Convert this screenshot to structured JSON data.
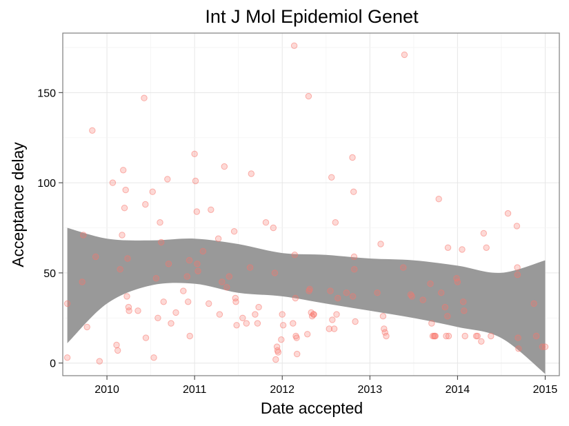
{
  "chart_data": {
    "type": "scatter",
    "title": "Int J Mol Epidemiol Genet",
    "xlabel": "Date accepted",
    "ylabel": "Acceptance delay",
    "x_ticks": [
      "2010",
      "2011",
      "2012",
      "2013",
      "2014",
      "2015"
    ],
    "y_ticks": [
      "0",
      "50",
      "100",
      "150"
    ],
    "xlim": [
      "2009-07-01",
      "2015-03-01"
    ],
    "ylim": [
      -7,
      183
    ],
    "grid": true,
    "point_color": "#f8766d",
    "band_color": "#999999",
    "points": [
      [
        "2009-07-20",
        33
      ],
      [
        "2009-07-20",
        3
      ],
      [
        "2009-09-20",
        45
      ],
      [
        "2009-09-25",
        71
      ],
      [
        "2009-10-10",
        20
      ],
      [
        "2009-11-01",
        129
      ],
      [
        "2009-11-15",
        59
      ],
      [
        "2009-12-01",
        1
      ],
      [
        "2010-01-25",
        100
      ],
      [
        "2010-02-10",
        10
      ],
      [
        "2010-02-15",
        7
      ],
      [
        "2010-02-25",
        52
      ],
      [
        "2010-03-05",
        71
      ],
      [
        "2010-03-10",
        107
      ],
      [
        "2010-03-15",
        86
      ],
      [
        "2010-03-20",
        96
      ],
      [
        "2010-03-25",
        37
      ],
      [
        "2010-03-28",
        58
      ],
      [
        "2010-04-01",
        31
      ],
      [
        "2010-04-03",
        29
      ],
      [
        "2010-05-10",
        29
      ],
      [
        "2010-06-05",
        147
      ],
      [
        "2010-06-10",
        88
      ],
      [
        "2010-06-12",
        14
      ],
      [
        "2010-07-10",
        95
      ],
      [
        "2010-07-15",
        3
      ],
      [
        "2010-07-25",
        47
      ],
      [
        "2010-08-01",
        25
      ],
      [
        "2010-08-10",
        78
      ],
      [
        "2010-08-15",
        67
      ],
      [
        "2010-08-25",
        34
      ],
      [
        "2010-09-10",
        102
      ],
      [
        "2010-09-15",
        55
      ],
      [
        "2010-09-25",
        22
      ],
      [
        "2010-10-15",
        28
      ],
      [
        "2010-11-15",
        40
      ],
      [
        "2010-12-01",
        48
      ],
      [
        "2010-12-05",
        34
      ],
      [
        "2010-12-10",
        57
      ],
      [
        "2010-12-12",
        15
      ],
      [
        "2011-01-01",
        116
      ],
      [
        "2011-01-05",
        101
      ],
      [
        "2011-01-10",
        84
      ],
      [
        "2011-01-12",
        55
      ],
      [
        "2011-01-15",
        51
      ],
      [
        "2011-02-05",
        62
      ],
      [
        "2011-03-01",
        33
      ],
      [
        "2011-03-10",
        85
      ],
      [
        "2011-04-10",
        69
      ],
      [
        "2011-04-15",
        27
      ],
      [
        "2011-04-25",
        45
      ],
      [
        "2011-05-05",
        109
      ],
      [
        "2011-05-15",
        42
      ],
      [
        "2011-05-25",
        48
      ],
      [
        "2011-06-15",
        73
      ],
      [
        "2011-06-20",
        36
      ],
      [
        "2011-06-22",
        34
      ],
      [
        "2011-06-25",
        21
      ],
      [
        "2011-07-20",
        25
      ],
      [
        "2011-08-05",
        22
      ],
      [
        "2011-08-20",
        53
      ],
      [
        "2011-08-25",
        105
      ],
      [
        "2011-09-10",
        27
      ],
      [
        "2011-09-20",
        22
      ],
      [
        "2011-09-25",
        31
      ],
      [
        "2011-10-25",
        78
      ],
      [
        "2011-11-25",
        75
      ],
      [
        "2011-12-01",
        50
      ],
      [
        "2011-12-05",
        2
      ],
      [
        "2011-12-10",
        9
      ],
      [
        "2011-12-12",
        7
      ],
      [
        "2011-12-15",
        6
      ],
      [
        "2011-12-28",
        13
      ],
      [
        "2012-01-01",
        27
      ],
      [
        "2012-01-05",
        21
      ],
      [
        "2012-02-15",
        22
      ],
      [
        "2012-02-20",
        176
      ],
      [
        "2012-02-22",
        60
      ],
      [
        "2012-02-25",
        36
      ],
      [
        "2012-02-27",
        15
      ],
      [
        "2012-03-01",
        14
      ],
      [
        "2012-03-03",
        5
      ],
      [
        "2012-04-15",
        16
      ],
      [
        "2012-04-20",
        148
      ],
      [
        "2012-04-22",
        40
      ],
      [
        "2012-04-25",
        41
      ],
      [
        "2012-05-01",
        28
      ],
      [
        "2012-05-05",
        26
      ],
      [
        "2012-05-10",
        27
      ],
      [
        "2012-05-12",
        27
      ],
      [
        "2012-07-15",
        19
      ],
      [
        "2012-07-20",
        40
      ],
      [
        "2012-07-25",
        103
      ],
      [
        "2012-07-28",
        24
      ],
      [
        "2012-08-05",
        19
      ],
      [
        "2012-08-10",
        78
      ],
      [
        "2012-08-15",
        27
      ],
      [
        "2012-08-20",
        36
      ],
      [
        "2012-09-25",
        39
      ],
      [
        "2012-10-20",
        114
      ],
      [
        "2012-10-22",
        37
      ],
      [
        "2012-10-25",
        95
      ],
      [
        "2012-10-27",
        59
      ],
      [
        "2012-10-28",
        52
      ],
      [
        "2012-11-01",
        23
      ],
      [
        "2013-02-01",
        39
      ],
      [
        "2013-02-15",
        66
      ],
      [
        "2013-02-25",
        26
      ],
      [
        "2013-03-01",
        19
      ],
      [
        "2013-03-05",
        17
      ],
      [
        "2013-03-10",
        15
      ],
      [
        "2013-05-20",
        53
      ],
      [
        "2013-05-25",
        171
      ],
      [
        "2013-06-20",
        38
      ],
      [
        "2013-06-25",
        37
      ],
      [
        "2013-08-10",
        35
      ],
      [
        "2013-09-10",
        44
      ],
      [
        "2013-09-15",
        22
      ],
      [
        "2013-09-20",
        15
      ],
      [
        "2013-09-25",
        15
      ],
      [
        "2013-09-28",
        15
      ],
      [
        "2013-10-01",
        15
      ],
      [
        "2013-10-15",
        91
      ],
      [
        "2013-10-25",
        39
      ],
      [
        "2013-11-10",
        31
      ],
      [
        "2013-11-15",
        15
      ],
      [
        "2013-11-20",
        26
      ],
      [
        "2013-11-22",
        64
      ],
      [
        "2013-11-25",
        15
      ],
      [
        "2013-12-28",
        47
      ],
      [
        "2014-01-01",
        45
      ],
      [
        "2014-01-20",
        63
      ],
      [
        "2014-01-25",
        34
      ],
      [
        "2014-01-28",
        29
      ],
      [
        "2014-02-01",
        15
      ],
      [
        "2014-03-20",
        15
      ],
      [
        "2014-03-25",
        15
      ],
      [
        "2014-04-10",
        12
      ],
      [
        "2014-04-20",
        72
      ],
      [
        "2014-05-01",
        64
      ],
      [
        "2014-05-20",
        15
      ],
      [
        "2014-07-30",
        83
      ],
      [
        "2014-09-05",
        76
      ],
      [
        "2014-09-07",
        53
      ],
      [
        "2014-09-08",
        49
      ],
      [
        "2014-09-10",
        14
      ],
      [
        "2014-09-12",
        8
      ],
      [
        "2014-11-15",
        33
      ],
      [
        "2014-11-25",
        15
      ],
      [
        "2014-12-20",
        9
      ],
      [
        "2015-01-01",
        9
      ]
    ],
    "band_upper": [
      [
        "2009-07-20",
        75
      ],
      [
        "2010-01-01",
        69
      ],
      [
        "2010-07-01",
        68
      ],
      [
        "2011-01-01",
        69
      ],
      [
        "2011-07-01",
        66
      ],
      [
        "2012-01-01",
        61
      ],
      [
        "2012-07-01",
        60
      ],
      [
        "2013-01-01",
        58
      ],
      [
        "2013-07-01",
        57
      ],
      [
        "2014-01-01",
        54
      ],
      [
        "2014-07-01",
        50
      ],
      [
        "2015-01-01",
        57
      ]
    ],
    "band_lower": [
      [
        "2009-07-20",
        11
      ],
      [
        "2010-01-01",
        33
      ],
      [
        "2010-07-01",
        43
      ],
      [
        "2011-01-01",
        44
      ],
      [
        "2011-07-01",
        39
      ],
      [
        "2012-01-01",
        37
      ],
      [
        "2012-07-01",
        33
      ],
      [
        "2013-01-01",
        29
      ],
      [
        "2013-07-01",
        25
      ],
      [
        "2014-01-01",
        20
      ],
      [
        "2014-07-01",
        14
      ],
      [
        "2015-01-01",
        -6
      ]
    ]
  }
}
